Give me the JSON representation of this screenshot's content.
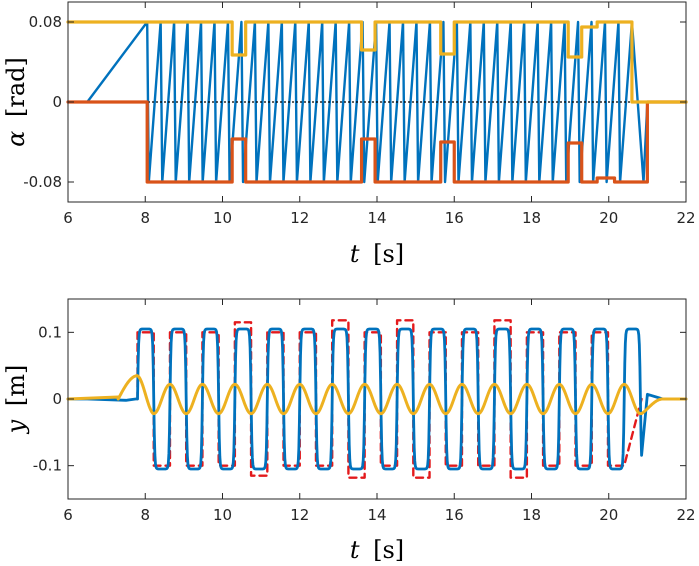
{
  "chart_data": [
    {
      "type": "line",
      "xlabel": {
        "var": "t",
        "unit": "[s]"
      },
      "ylabel": {
        "var": "α",
        "unit": "[rad]"
      },
      "xlim": [
        6,
        22
      ],
      "ylim": [
        -0.1,
        0.1
      ],
      "xticks": [
        6,
        8,
        10,
        12,
        14,
        16,
        18,
        20,
        22
      ],
      "xtick_labels": [
        "6",
        "8",
        "10",
        "12",
        "14",
        "16",
        "18",
        "20",
        "22"
      ],
      "yticks": [
        -0.08,
        0,
        0.08
      ],
      "ytick_labels": [
        "-0.08",
        "0",
        "0.08"
      ],
      "zero_line": true,
      "grid": false,
      "colors": {
        "blue": "#0072bd",
        "orange": "#d95319",
        "yellow": "#edb120",
        "zero": "#000000"
      },
      "series": [
        {
          "color": "yellow",
          "style": "solid",
          "points": [
            [
              6,
              0.08
            ],
            [
              10.25,
              0.08
            ],
            [
              10.25,
              0.047
            ],
            [
              10.6,
              0.047
            ],
            [
              10.6,
              0.08
            ],
            [
              13.6,
              0.08
            ],
            [
              13.6,
              0.052
            ],
            [
              13.95,
              0.052
            ],
            [
              13.95,
              0.08
            ],
            [
              15.65,
              0.08
            ],
            [
              15.65,
              0.048
            ],
            [
              16.0,
              0.048
            ],
            [
              16.0,
              0.08
            ],
            [
              18.95,
              0.08
            ],
            [
              18.95,
              0.045
            ],
            [
              19.3,
              0.045
            ],
            [
              19.3,
              0.075
            ],
            [
              19.7,
              0.075
            ],
            [
              19.7,
              0.08
            ],
            [
              20.6,
              0.08
            ],
            [
              20.6,
              0
            ],
            [
              22,
              0
            ]
          ]
        },
        {
          "color": "orange",
          "style": "solid",
          "points": [
            [
              6,
              0
            ],
            [
              8.05,
              0
            ],
            [
              8.05,
              -0.08
            ],
            [
              10.25,
              -0.08
            ],
            [
              10.25,
              -0.037
            ],
            [
              10.6,
              -0.037
            ],
            [
              10.6,
              -0.08
            ],
            [
              13.6,
              -0.08
            ],
            [
              13.6,
              -0.037
            ],
            [
              13.95,
              -0.037
            ],
            [
              13.95,
              -0.08
            ],
            [
              15.65,
              -0.08
            ],
            [
              15.65,
              -0.04
            ],
            [
              16.0,
              -0.04
            ],
            [
              16.0,
              -0.08
            ],
            [
              18.95,
              -0.08
            ],
            [
              18.95,
              -0.041
            ],
            [
              19.3,
              -0.041
            ],
            [
              19.3,
              -0.08
            ],
            [
              19.7,
              -0.08
            ],
            [
              19.7,
              -0.076
            ],
            [
              20.15,
              -0.076
            ],
            [
              20.15,
              -0.08
            ],
            [
              21.0,
              -0.08
            ],
            [
              21.0,
              0
            ],
            [
              22,
              0
            ]
          ]
        },
        {
          "color": "blue",
          "style": "sawtooth",
          "lead_in": [
            [
              6.5,
              0
            ],
            [
              8.05,
              0.08
            ]
          ],
          "x_start": 8.05,
          "x_end": 20.6,
          "cycles": 36,
          "high": 0.08,
          "low": -0.08,
          "tail": [
            [
              20.6,
              0.08
            ],
            [
              20.9,
              -0.08
            ],
            [
              21.0,
              0
            ]
          ]
        }
      ]
    },
    {
      "type": "line",
      "xlabel": {
        "var": "t",
        "unit": "[s]"
      },
      "ylabel": {
        "var": "y",
        "unit": "[m]"
      },
      "xlim": [
        6,
        22
      ],
      "ylim": [
        -0.15,
        0.15
      ],
      "xticks": [
        6,
        8,
        10,
        12,
        14,
        16,
        18,
        20,
        22
      ],
      "xtick_labels": [
        "6",
        "8",
        "10",
        "12",
        "14",
        "16",
        "18",
        "20",
        "22"
      ],
      "yticks": [
        -0.1,
        0,
        0.1
      ],
      "ytick_labels": [
        "-0.1",
        "0",
        "0.1"
      ],
      "grid": false,
      "colors": {
        "blue": "#0072bd",
        "red": "#e31a1c",
        "yellow": "#edb120"
      },
      "series": [
        {
          "color": "red",
          "style": "dashed-square",
          "x_start": 7.8,
          "period": 0.84,
          "cycles": 15,
          "x_end": 20.85,
          "amplitudes": [
            0.1,
            0.1,
            0.1,
            0.115,
            0.1,
            0.1,
            0.118,
            0.1,
            0.118,
            0.1,
            0.1,
            0.118,
            0.1,
            0.1,
            0.1
          ]
        },
        {
          "color": "blue",
          "style": "smooth-square",
          "x_start": 7.8,
          "period": 0.84,
          "x_end": 20.85,
          "amplitude": 0.105
        },
        {
          "color": "yellow",
          "style": "sine",
          "x_start": 7.3,
          "x_end": 21.4,
          "period": 0.84,
          "amplitude": 0.022,
          "peak": [
            7.8,
            0.035
          ]
        }
      ]
    }
  ]
}
